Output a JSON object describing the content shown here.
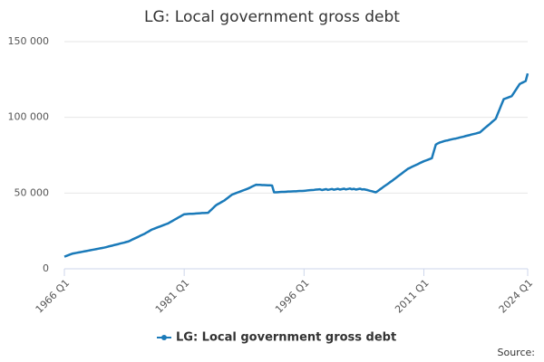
{
  "chart_data": {
    "type": "line",
    "title": "LG: Local government gross debt",
    "source_label": "Source:",
    "grid": true,
    "legend": "bottom",
    "ylim": [
      0,
      150000
    ],
    "yticks": [
      0,
      {
        "value": 50000,
        "label": "50 000"
      },
      {
        "value": 100000,
        "label": "100 000"
      },
      {
        "value": 150000,
        "label": "150 000"
      }
    ],
    "categories": [
      "1966 Q1",
      null,
      null,
      null,
      null,
      null,
      null,
      null,
      null,
      null,
      null,
      null,
      null,
      null,
      null,
      null,
      null,
      null,
      null,
      null,
      null,
      null,
      null,
      null,
      null,
      null,
      null,
      null,
      null,
      null,
      null,
      null,
      null,
      null,
      null,
      null,
      null,
      null,
      null,
      null,
      null,
      null,
      null,
      null,
      null,
      null,
      null,
      null,
      null,
      null,
      null,
      null,
      null,
      null,
      null,
      null,
      null,
      null,
      null,
      null,
      "1981 Q1",
      null,
      null,
      null,
      null,
      null,
      null,
      null,
      null,
      null,
      null,
      null,
      null,
      null,
      null,
      null,
      null,
      null,
      null,
      null,
      null,
      null,
      null,
      null,
      null,
      null,
      null,
      null,
      null,
      null,
      null,
      null,
      null,
      null,
      null,
      null,
      null,
      null,
      null,
      null,
      null,
      null,
      null,
      null,
      null,
      null,
      null,
      null,
      null,
      null,
      null,
      null,
      null,
      null,
      null,
      null,
      null,
      null,
      null,
      null,
      "1996 Q1",
      null,
      null,
      null,
      null,
      null,
      null,
      null,
      null,
      null,
      null,
      null,
      null,
      null,
      null,
      null,
      null,
      null,
      null,
      null,
      null,
      null,
      null,
      null,
      null,
      null,
      null,
      null,
      null,
      null,
      null,
      null,
      null,
      null,
      null,
      null,
      null,
      null,
      null,
      null,
      null,
      null,
      null,
      null,
      null,
      null,
      null,
      null,
      null,
      null,
      null,
      null,
      null,
      null,
      null,
      null,
      null,
      null,
      null,
      null,
      "2011 Q1",
      null,
      null,
      null,
      null,
      null,
      null,
      null,
      null,
      null,
      null,
      null,
      null,
      null,
      null,
      null,
      null,
      null,
      null,
      null,
      null,
      null,
      null,
      null,
      null,
      null,
      null,
      null,
      null,
      null,
      null,
      null,
      null,
      null,
      null,
      null,
      null,
      null,
      null,
      null,
      null,
      null,
      null,
      null,
      null,
      null,
      null,
      null,
      null,
      null,
      null,
      null,
      "2024 Q1"
    ],
    "series": [
      {
        "name": "LG: Local government gross debt",
        "color": "#1a7ab9",
        "values": [
          8000,
          8500,
          9000,
          9500,
          10000,
          10250,
          10500,
          10750,
          11000,
          11250,
          11500,
          11750,
          12000,
          12250,
          12500,
          12750,
          13000,
          13250,
          13500,
          13750,
          14000,
          14300,
          14700,
          15000,
          15300,
          15700,
          16000,
          16300,
          16700,
          17000,
          17300,
          17700,
          18000,
          18600,
          19300,
          19900,
          20500,
          21100,
          21800,
          22400,
          23000,
          23800,
          24500,
          25300,
          26000,
          26500,
          27000,
          27500,
          28000,
          28500,
          29000,
          29500,
          30000,
          30800,
          31500,
          32300,
          33000,
          33800,
          34500,
          35300,
          36000,
          36100,
          36200,
          36300,
          36300,
          36400,
          36500,
          36600,
          36700,
          36800,
          36800,
          36900,
          37000,
          38300,
          39500,
          40800,
          42000,
          42800,
          43500,
          44300,
          45000,
          46000,
          47000,
          48000,
          49000,
          49500,
          50000,
          50500,
          51000,
          51500,
          52000,
          52500,
          53000,
          53600,
          54300,
          54900,
          55500,
          55400,
          55400,
          55300,
          55300,
          55200,
          55100,
          55100,
          55000,
          50500,
          50500,
          50600,
          50700,
          50800,
          50800,
          50900,
          51000,
          51000,
          51100,
          51200,
          51200,
          51300,
          51400,
          51400,
          51500,
          51600,
          51800,
          51900,
          52000,
          52100,
          52300,
          52400,
          52500,
          52000,
          52300,
          52600,
          52100,
          52400,
          52700,
          52200,
          52500,
          52800,
          52300,
          52600,
          52900,
          52400,
          52700,
          53000,
          52500,
          52800,
          52300,
          52600,
          52900,
          52400,
          52500,
          52200,
          51900,
          51500,
          51200,
          50800,
          50500,
          51400,
          52400,
          53300,
          54300,
          55200,
          56100,
          57100,
          58000,
          59000,
          60000,
          61000,
          62000,
          63000,
          64000,
          65000,
          66000,
          66600,
          67300,
          67900,
          68500,
          69100,
          69800,
          70400,
          71000,
          71500,
          72000,
          72500,
          73000,
          77500,
          82000,
          82800,
          83400,
          83800,
          84200,
          84600,
          84800,
          85200,
          85500,
          85800,
          86000,
          86300,
          86700,
          87000,
          87300,
          87700,
          88000,
          88300,
          88700,
          89000,
          89300,
          89700,
          90000,
          91100,
          92300,
          93400,
          94500,
          95600,
          96800,
          97900,
          99000,
          102300,
          105500,
          108800,
          112000,
          112500,
          113000,
          113500,
          114000,
          116000,
          118000,
          120000,
          122000,
          122700,
          123300,
          124000,
          129000
        ]
      }
    ]
  }
}
